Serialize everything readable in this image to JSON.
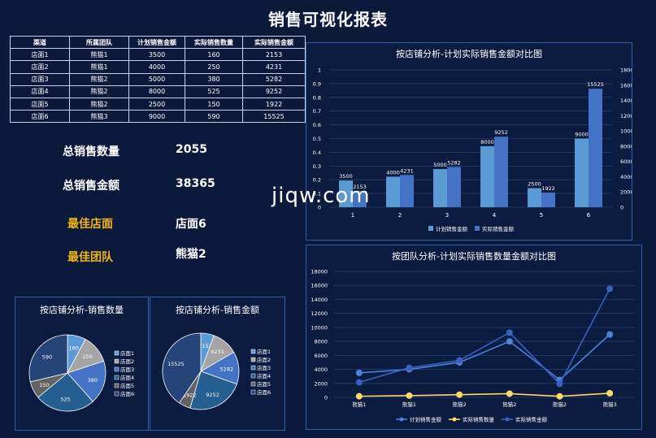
{
  "title": "销售可视化报表",
  "table": {
    "headers": [
      "渠道",
      "所属团队",
      "计划销售金额",
      "实际销售数量",
      "实际销售金额"
    ],
    "rows": [
      [
        "店面1",
        "熊猫1",
        "3500",
        "160",
        "2153"
      ],
      [
        "店面2",
        "熊猫1",
        "4000",
        "250",
        "4231"
      ],
      [
        "店面3",
        "熊猫2",
        "5000",
        "380",
        "5282"
      ],
      [
        "店面4",
        "熊猫2",
        "8000",
        "525",
        "9252"
      ],
      [
        "店面5",
        "熊猫2",
        "2500",
        "150",
        "1922"
      ],
      [
        "店面6",
        "熊猫3",
        "9000",
        "590",
        "15525"
      ]
    ]
  },
  "kpis": [
    {
      "label": "总销售数量",
      "value": "2055"
    },
    {
      "label": "总销售金额",
      "value": "38365"
    },
    {
      "label": "最佳店面",
      "value": "店面6"
    },
    {
      "label": "最佳团队",
      "value": "熊猫2"
    }
  ],
  "watermark": "jiqw.com",
  "colors": {
    "background": "#0b1a3b",
    "panel_border": "#2f5fa8",
    "gold": "#f0b414",
    "bar1": "#5b9bd5",
    "bar2": "#4472c4",
    "line_plan": "#4f81d8",
    "line_qty": "#ffd966",
    "line_actual": "#3a5fc0"
  },
  "chart_data": [
    {
      "type": "bar",
      "title": "按店铺分析-计划实际销售金额对比图",
      "categories": [
        "1",
        "2",
        "3",
        "4",
        "5",
        "6"
      ],
      "series": [
        {
          "name": "计划销售金额",
          "values": [
            3500,
            4000,
            5000,
            8000,
            2500,
            9000
          ],
          "axis": "left",
          "display_max": 1
        },
        {
          "name": "实际销售金额",
          "values": [
            2153,
            4231,
            5282,
            9252,
            1922,
            15525
          ],
          "axis": "right"
        }
      ],
      "y_left": {
        "ylim": [
          0,
          1
        ],
        "ticks": [
          "0",
          "0.1",
          "0.2",
          "0.3",
          "0.4",
          "0.5",
          "0.6",
          "0.7",
          "0.8",
          "0.9",
          "1"
        ]
      },
      "y_right": {
        "ylim": [
          0,
          18000
        ],
        "ticks": [
          "0",
          "2000",
          "4000",
          "6000",
          "8000",
          "10000",
          "12000",
          "14000",
          "16000",
          "18000"
        ]
      },
      "legend": "bottom",
      "grid": true
    },
    {
      "type": "line",
      "title": "按团队分析-计划实际销售数量金额对比图",
      "categories": [
        "熊猫1",
        "熊猫1",
        "熊猫2",
        "熊猫2",
        "熊猫2",
        "熊猫3"
      ],
      "series": [
        {
          "name": "计划销售金额",
          "values": [
            3500,
            4000,
            5000,
            8000,
            2500,
            9000
          ]
        },
        {
          "name": "实际销售数量",
          "values": [
            160,
            250,
            380,
            525,
            150,
            590
          ]
        },
        {
          "name": "实际销售金额",
          "values": [
            2153,
            4231,
            5282,
            9252,
            1922,
            15525
          ]
        }
      ],
      "ylim": [
        0,
        18000
      ],
      "yticks": [
        "0",
        "2000",
        "4000",
        "6000",
        "8000",
        "10000",
        "12000",
        "14000",
        "16000",
        "18000"
      ],
      "legend": "bottom",
      "grid": true
    },
    {
      "type": "pie",
      "title": "按店铺分析-销售数量",
      "labels": [
        "店面1",
        "店面2",
        "店面3",
        "店面4",
        "店面5",
        "店面6"
      ],
      "values": [
        160,
        250,
        380,
        525,
        150,
        590
      ],
      "legend": "right"
    },
    {
      "type": "pie",
      "title": "按店铺分析-销售金额",
      "labels": [
        "店面1",
        "店面2",
        "店面3",
        "店面4",
        "店面5",
        "店面6"
      ],
      "values": [
        2153,
        4231,
        5282,
        9252,
        1922,
        15525
      ],
      "legend": "right"
    }
  ]
}
